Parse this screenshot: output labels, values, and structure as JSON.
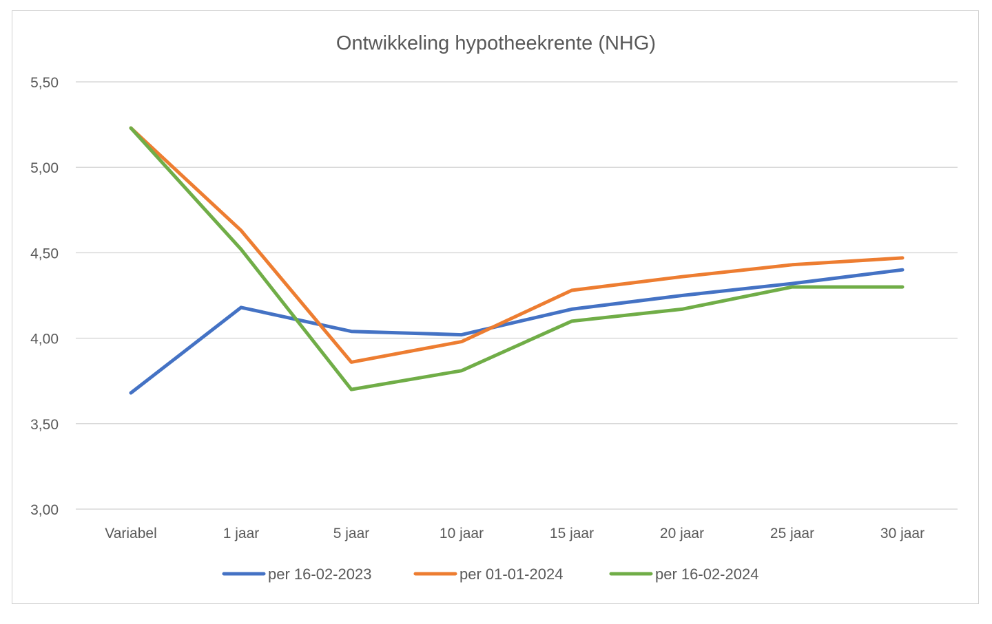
{
  "chart_data": {
    "type": "line",
    "title": "Ontwikkeling hypotheekrente (NHG)",
    "xlabel": "",
    "ylabel": "",
    "categories": [
      "Variabel",
      "1 jaar",
      "5 jaar",
      "10 jaar",
      "15 jaar",
      "20 jaar",
      "25 jaar",
      "30 jaar"
    ],
    "ylim": [
      3.0,
      5.5
    ],
    "yticks": [
      3.0,
      3.5,
      4.0,
      4.5,
      5.0,
      5.5
    ],
    "ytick_labels": [
      "3,00",
      "3,50",
      "4,00",
      "4,50",
      "5,00",
      "5,50"
    ],
    "grid": true,
    "legend_position": "bottom",
    "series": [
      {
        "name": "per 16-02-2023",
        "color": "#4472c4",
        "values": [
          3.68,
          4.18,
          4.04,
          4.02,
          4.17,
          4.25,
          4.32,
          4.4
        ]
      },
      {
        "name": "per 01-01-2024",
        "color": "#ed7d31",
        "values": [
          5.23,
          4.63,
          3.86,
          3.98,
          4.28,
          4.36,
          4.43,
          4.47
        ]
      },
      {
        "name": "per 16-02-2024",
        "color": "#70ad47",
        "values": [
          5.23,
          4.52,
          3.7,
          3.81,
          4.1,
          4.17,
          4.3,
          4.3
        ]
      }
    ]
  }
}
